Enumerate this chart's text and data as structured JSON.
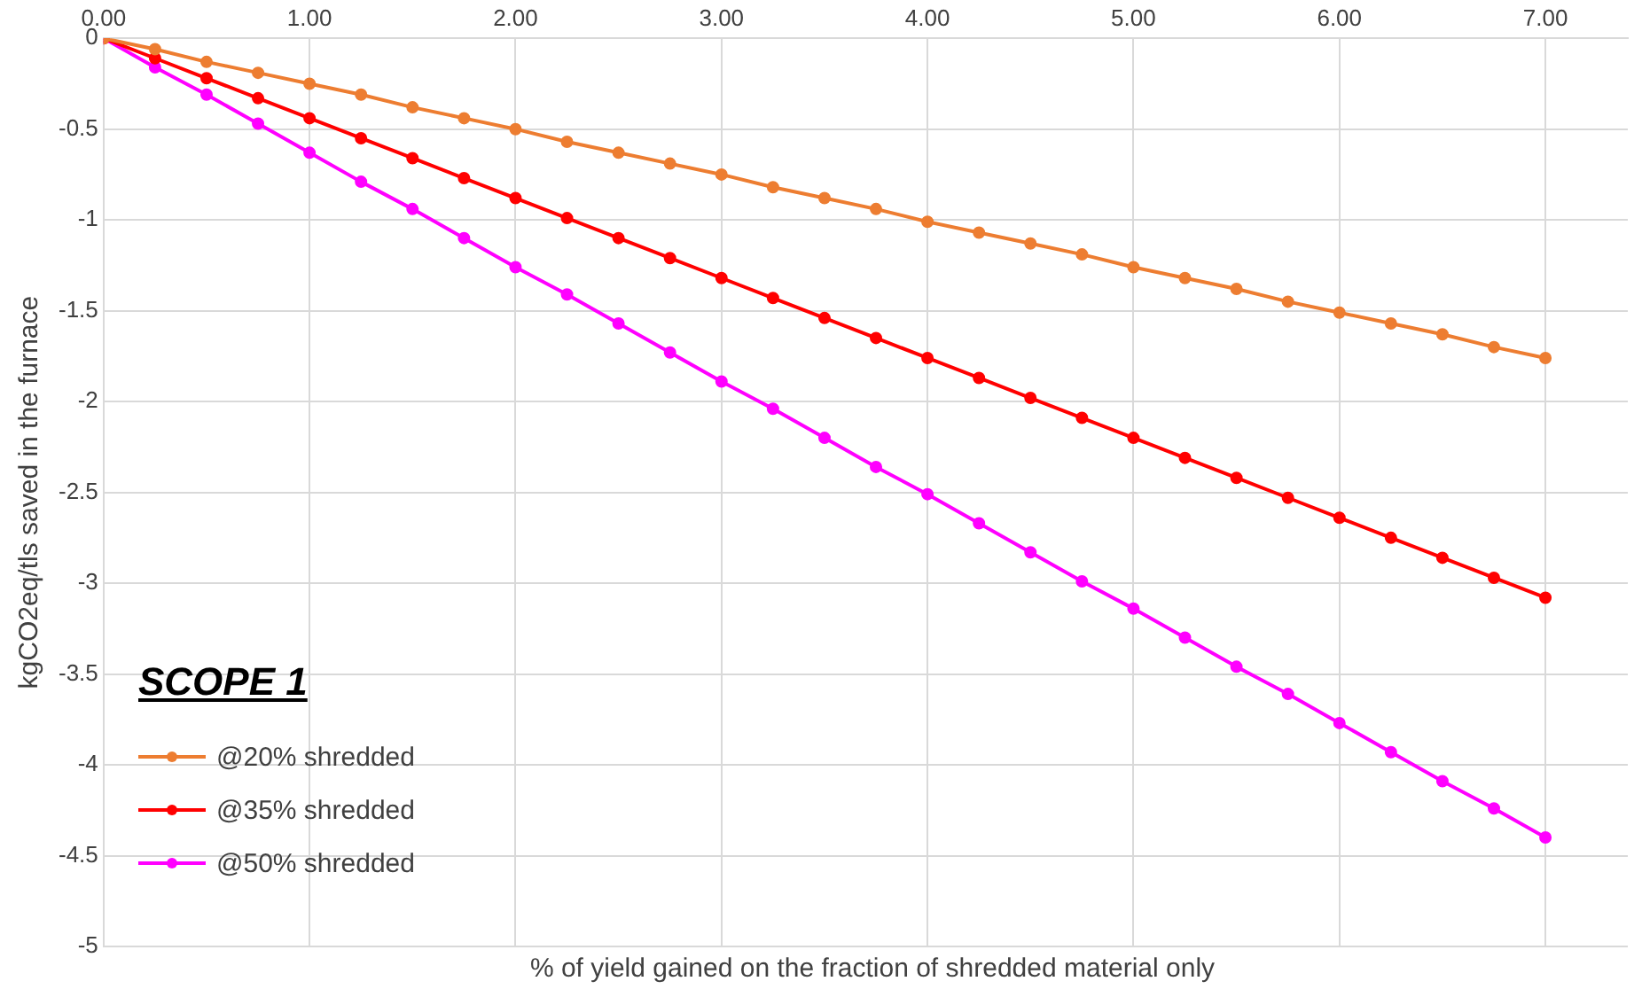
{
  "chart_data": {
    "type": "line",
    "xlabel": "% of yield gained on the fraction of shredded material only",
    "ylabel": "kgCO2eq/tls saved in the furnace",
    "legend_title": "SCOPE 1",
    "x": [
      0,
      0.25,
      0.5,
      0.75,
      1,
      1.25,
      1.5,
      1.75,
      2,
      2.25,
      2.5,
      2.75,
      3,
      3.25,
      3.5,
      3.75,
      4,
      4.25,
      4.5,
      4.75,
      5,
      5.25,
      5.5,
      5.75,
      6,
      6.25,
      6.5,
      6.75,
      7
    ],
    "series": [
      {
        "name": "@20% shredded",
        "color": "#ed7d31",
        "values": [
          0,
          -0.06,
          -0.13,
          -0.19,
          -0.25,
          -0.31,
          -0.38,
          -0.44,
          -0.5,
          -0.57,
          -0.63,
          -0.69,
          -0.75,
          -0.82,
          -0.88,
          -0.94,
          -1.01,
          -1.07,
          -1.13,
          -1.19,
          -1.26,
          -1.32,
          -1.38,
          -1.45,
          -1.51,
          -1.57,
          -1.63,
          -1.7,
          -1.76
        ]
      },
      {
        "name": "@35% shredded",
        "color": "#ff0000",
        "values": [
          0,
          -0.11,
          -0.22,
          -0.33,
          -0.44,
          -0.55,
          -0.66,
          -0.77,
          -0.88,
          -0.99,
          -1.1,
          -1.21,
          -1.32,
          -1.43,
          -1.54,
          -1.65,
          -1.76,
          -1.87,
          -1.98,
          -2.09,
          -2.2,
          -2.31,
          -2.42,
          -2.53,
          -2.64,
          -2.75,
          -2.86,
          -2.97,
          -3.08
        ]
      },
      {
        "name": "@50% shredded",
        "color": "#ff00ff",
        "values": [
          0,
          -0.16,
          -0.31,
          -0.47,
          -0.63,
          -0.79,
          -0.94,
          -1.1,
          -1.26,
          -1.41,
          -1.57,
          -1.73,
          -1.89,
          -2.04,
          -2.2,
          -2.36,
          -2.51,
          -2.67,
          -2.83,
          -2.99,
          -3.14,
          -3.3,
          -3.46,
          -3.61,
          -3.77,
          -3.93,
          -4.09,
          -4.24,
          -4.4
        ]
      }
    ],
    "xlim": [
      0,
      7.4
    ],
    "xticks": [
      {
        "value": 0,
        "label": "0.00"
      },
      {
        "value": 1,
        "label": "1.00"
      },
      {
        "value": 2,
        "label": "2.00"
      },
      {
        "value": 3,
        "label": "3.00"
      },
      {
        "value": 4,
        "label": "4.00"
      },
      {
        "value": 5,
        "label": "5.00"
      },
      {
        "value": 6,
        "label": "6.00"
      },
      {
        "value": 7,
        "label": "7.00"
      }
    ],
    "ylim": [
      -5,
      0
    ],
    "yticks": [
      -5,
      -4.5,
      -4,
      -3.5,
      -3,
      -2.5,
      -2,
      -1.5,
      -1,
      -0.5,
      0
    ],
    "grid": true,
    "legend": "bottom left",
    "marker": "circle",
    "line_style": "solid"
  }
}
